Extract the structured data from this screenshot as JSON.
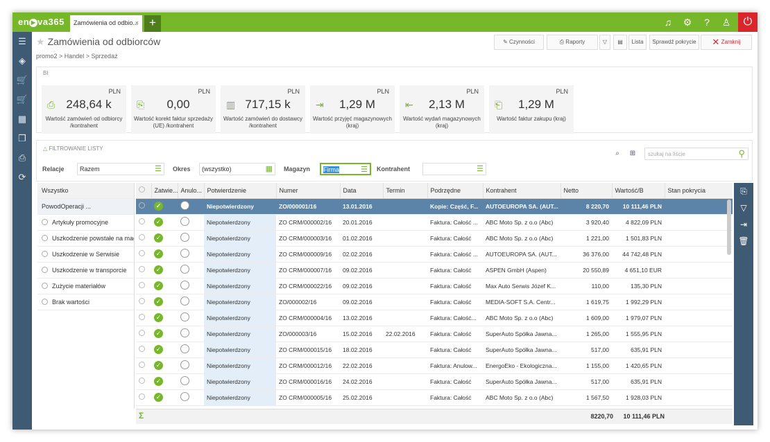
{
  "app": {
    "logo": "enova365",
    "tab_title": "Zamówienia od odbio...",
    "tab_close": "×",
    "new_tab": "+",
    "icons": [
      "bell-icon",
      "gear-icon",
      "help-icon",
      "user-icon"
    ],
    "power": "⏻",
    "accent": "#76b82a"
  },
  "nav": {
    "icons": [
      "☰",
      "◈",
      "🛒",
      "🛒",
      "▦",
      "❐",
      "⎙",
      "⟳"
    ]
  },
  "header": {
    "title": "Zamówienia od odbiorców",
    "breadcrumb": "promo2 > Handel > Sprzedaż"
  },
  "toolbar": {
    "actions": "Czynności",
    "reports": "Raporty",
    "list": "Lista",
    "check": "Sprawdź pokrycie",
    "close": "Zamknij"
  },
  "bi": {
    "label": "BI",
    "kpis": [
      {
        "currency": "PLN",
        "value": "248,64 k",
        "label": "Wartość zamówień od odbiorcy /kontrahent"
      },
      {
        "currency": "PLN",
        "value": "0,00",
        "label": "Wartość korekt faktur sprzedaży (UE) /kontrahent"
      },
      {
        "currency": "PLN",
        "value": "717,15 k",
        "label": "Wartość zamówień do dostawcy /kontrahent"
      },
      {
        "currency": "PLN",
        "value": "1,29 M",
        "label": "Wartość przyjęć magazynowych (kraj)"
      },
      {
        "currency": "PLN",
        "value": "2,13 M",
        "label": "Wartość wydań magazynowych (kraj)"
      },
      {
        "currency": "PLN",
        "value": "1,29 M",
        "label": "Wartość faktur zakupu (kraj)"
      }
    ]
  },
  "filter": {
    "title": "FILTROWANIE LISTY",
    "relacje_label": "Relacje",
    "relacje": "Razem",
    "okres_label": "Okres",
    "okres": "(wszystko)",
    "magazyn_label": "Magazyn",
    "magazyn": "Firma",
    "kontrahent_label": "Kontrahent",
    "kontrahent": "",
    "search_placeholder": "szukaj na liście"
  },
  "groups": [
    {
      "label": "Wszystko"
    },
    {
      "label": "PowodOperacji ..."
    },
    {
      "label": "Artykuły promocyjne"
    },
    {
      "label": "Uszkodzenie powstałe na magazynie"
    },
    {
      "label": "Uszkodzenie w Serwisie"
    },
    {
      "label": "Uszkodzenie w transporcie"
    },
    {
      "label": "Zużycie materiałów"
    },
    {
      "label": "Brak wartości"
    }
  ],
  "grid": {
    "columns": [
      "Zatwie...",
      "Anulo...",
      "Potwierdzenie",
      "Numer",
      "Data",
      "Termin",
      "Podrzędne",
      "Kontrahent",
      "Netto",
      "Wartość/B",
      "Stan pokrycia"
    ],
    "rows": [
      [
        "Niepotwierdzony",
        "ZO/000001/16",
        "13.01.2016",
        "",
        "Kopie: Część, F...",
        "AUTOEUROPA SA. (AUT...",
        "8 220,70",
        "10 111,46 PLN",
        ""
      ],
      [
        "Niepotwierdzony",
        "ZO CRM/000002/16",
        "20.01.2016",
        "",
        "Faktura: Całość ...",
        "ABC Moto Sp. z o.o (Abc)",
        "3 920,40",
        "4 822,09 PLN",
        ""
      ],
      [
        "Niepotwierdzony",
        "ZO CRM/000003/16",
        "01.02.2016",
        "",
        "Faktura: Całość",
        "ABC Moto Sp. z o.o (Abc)",
        "1 221,00",
        "1 501,83 PLN",
        ""
      ],
      [
        "Niepotwierdzony",
        "ZO CRM/000009/16",
        "02.02.2016",
        "",
        "Faktura: Całość ...",
        "AUTOEUROPA SA. (AUT...",
        "36 376,00",
        "44 742,48 PLN",
        ""
      ],
      [
        "Niepotwierdzony",
        "ZO CRM/000007/16",
        "09.02.2016",
        "",
        "Faktura: Całość",
        "ASPEN GmbH (Aspen)",
        "20 550,89",
        "4 651,10 EUR",
        ""
      ],
      [
        "Niepotwierdzony",
        "ZO CRM/000022/16",
        "09.02.2016",
        "",
        "Faktura: Całość",
        "Max Auto Serwis Józef K...",
        "110,00",
        "135,30 PLN",
        ""
      ],
      [
        "Niepotwierdzony",
        "ZO/000002/16",
        "09.02.2016",
        "",
        "Faktura: Całość",
        "MEDIA-SOFT S.A. Centr...",
        "1 619,75",
        "1 992,29 PLN",
        ""
      ],
      [
        "Niepotwierdzony",
        "ZO CRM/000004/16",
        "13.02.2016",
        "",
        "Faktura: Całość...",
        "ABC Moto Sp. z o.o (Abc)",
        "1 609,00",
        "1 979,07 PLN",
        ""
      ],
      [
        "Niepotwierdzony",
        "ZO/000003/16",
        "15.02.2016",
        "22.02.2016",
        "Faktura: Całość",
        "SuperAuto Spółka Jawna...",
        "1 265,00",
        "1 555,95 PLN",
        ""
      ],
      [
        "Niepotwierdzony",
        "ZO CRM/000015/16",
        "18.02.2016",
        "",
        "Faktura: Całość",
        "SuperAuto Spółka Jawna...",
        "517,00",
        "635,91 PLN",
        ""
      ],
      [
        "Niepotwierdzony",
        "ZO CRM/000012/16",
        "22.02.2016",
        "",
        "Faktura: Anulow...",
        "EnergoEko - Ekologiczna...",
        "1 155,00",
        "1 420,65 PLN",
        ""
      ],
      [
        "Niepotwierdzony",
        "ZO CRM/000016/16",
        "24.02.2016",
        "",
        "Faktura: Całość",
        "SuperAuto Spółka Jawna...",
        "517,00",
        "635,91 PLN",
        ""
      ],
      [
        "Niepotwierdzony",
        "ZO CRM/000005/16",
        "25.02.2016",
        "",
        "Faktura: Całość",
        "ABC Moto Sp. z o.o (Abc)",
        "1 567,50",
        "1 928,03 PLN",
        ""
      ]
    ],
    "footer": {
      "netto": "8220,70",
      "wartosc": "10 111,46 PLN"
    }
  }
}
